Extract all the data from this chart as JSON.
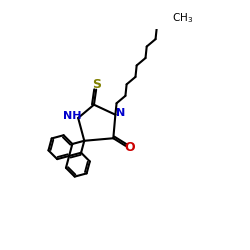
{
  "bg_color": "#ffffff",
  "bond_color": "#000000",
  "N_color": "#0000cc",
  "O_color": "#cc0000",
  "S_color": "#808000",
  "lw": 1.5,
  "xlim": [
    -3.5,
    5.5
  ],
  "ylim": [
    -3.5,
    3.5
  ],
  "figsize": [
    2.5,
    2.5
  ],
  "dpi": 100
}
